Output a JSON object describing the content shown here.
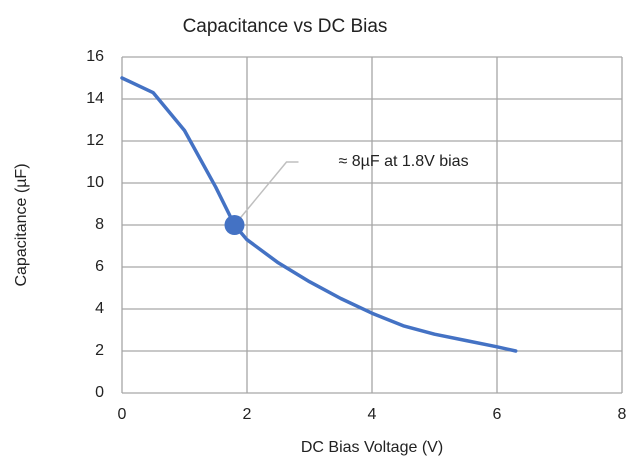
{
  "chart_data": {
    "type": "line",
    "title": "Capacitance vs DC Bias",
    "xlabel": "DC Bias Voltage (V)",
    "ylabel": "Capacitance (µF)",
    "x": [
      0,
      0.5,
      1,
      1.5,
      1.8,
      2,
      2.5,
      3,
      3.5,
      4,
      4.5,
      5,
      5.5,
      6,
      6.3
    ],
    "series": [
      {
        "name": "Capacitance",
        "color": "#4472c4",
        "values": [
          15,
          14.3,
          12.5,
          9.8,
          8,
          7.3,
          6.2,
          5.3,
          4.5,
          3.8,
          3.2,
          2.8,
          2.5,
          2.2,
          2.0
        ]
      }
    ],
    "annotation": {
      "text": "≈ 8µF at 1.8V bias",
      "x": 1.8,
      "y": 8
    },
    "xlim": [
      0,
      8
    ],
    "xticks": [
      0,
      2,
      4,
      6,
      8
    ],
    "ylim": [
      0,
      16
    ],
    "yticks": [
      0,
      2,
      4,
      6,
      8,
      10,
      12,
      14,
      16
    ],
    "grid": true
  }
}
